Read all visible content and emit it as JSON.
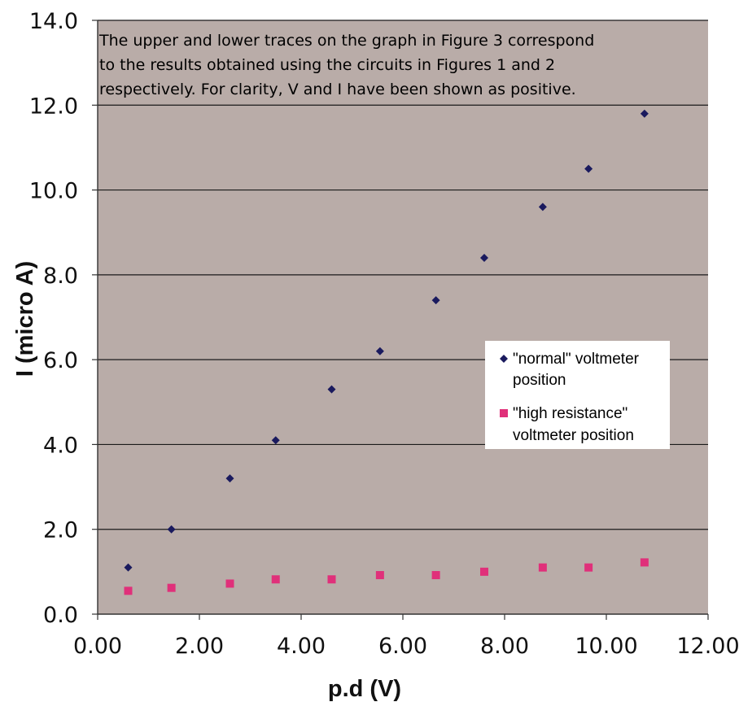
{
  "chart_data": {
    "type": "scatter",
    "title": "",
    "xlabel": "p.d (V)",
    "ylabel": "I (micro A)",
    "xlim": [
      0,
      12
    ],
    "ylim": [
      0,
      14
    ],
    "x_ticks": [
      "0.00",
      "2.00",
      "4.00",
      "6.00",
      "8.00",
      "10.00",
      "12.00"
    ],
    "y_ticks": [
      "0.0",
      "2.0",
      "4.0",
      "6.0",
      "8.0",
      "10.0",
      "12.0",
      "14.0"
    ],
    "grid": "horizontal",
    "plot_background": "#b9aca8",
    "legend_position": "right",
    "annotation": [
      "The upper and lower traces on the graph in Figure 3 correspond",
      "to the results obtained using the circuits in Figures 1 and 2",
      "respectively. For clarity, V and I have been shown as positive."
    ],
    "series": [
      {
        "name": "\"normal\" voltmeter position",
        "marker": "diamond",
        "color": "#1a1a5e",
        "x": [
          0.6,
          1.45,
          2.6,
          3.5,
          4.6,
          5.55,
          6.65,
          7.6,
          8.75,
          9.65,
          10.75
        ],
        "y": [
          1.1,
          2.0,
          3.2,
          4.1,
          5.3,
          6.2,
          7.4,
          8.4,
          9.6,
          10.5,
          11.8
        ]
      },
      {
        "name": "\"high resistance\" voltmeter position",
        "marker": "square",
        "color": "#e0307a",
        "x": [
          0.6,
          1.45,
          2.6,
          3.5,
          4.6,
          5.55,
          6.65,
          7.6,
          8.75,
          9.65,
          10.75
        ],
        "y": [
          0.55,
          0.62,
          0.72,
          0.82,
          0.82,
          0.92,
          0.92,
          1.0,
          1.1,
          1.1,
          1.22
        ]
      }
    ],
    "legend": {
      "entries": [
        {
          "line1": "\"normal\" voltmeter",
          "line2": "position"
        },
        {
          "line1": "\"high resistance\"",
          "line2": "voltmeter position"
        }
      ]
    }
  }
}
